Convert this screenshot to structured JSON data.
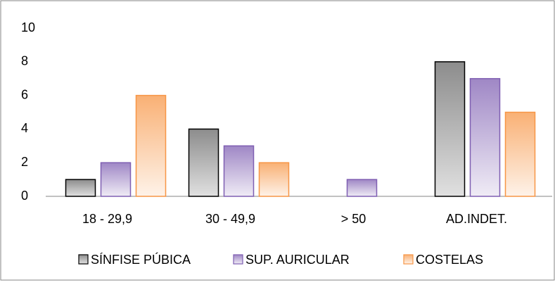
{
  "chart_data": {
    "type": "bar",
    "categories": [
      "18 - 29,9",
      "30 - 49,9",
      "> 50",
      "AD.INDET."
    ],
    "series": [
      {
        "name": "SÍNFISE PÚBICA",
        "color": "#000000",
        "values": [
          1,
          4,
          0,
          8
        ]
      },
      {
        "name": "SUP. AURICULAR",
        "color": "#7f5fb2",
        "values": [
          2,
          3,
          1,
          7
        ]
      },
      {
        "name": "COSTELAS",
        "color": "#f79646",
        "values": [
          6,
          2,
          0,
          5
        ]
      }
    ],
    "ylim": [
      0,
      10
    ],
    "yticks": [
      0,
      2,
      4,
      6,
      8,
      10
    ],
    "grid": false,
    "legend": "bottom"
  }
}
